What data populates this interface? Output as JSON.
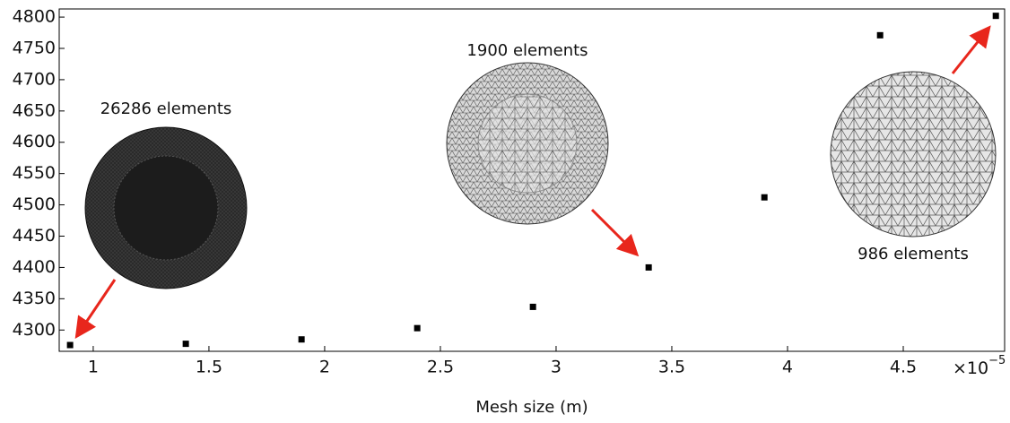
{
  "chart_data": {
    "type": "scatter",
    "x_label": "Mesh size (m)",
    "x_multiplier": {
      "base": "×10",
      "exponent": "−5"
    },
    "x": [
      0.9,
      1.4,
      1.9,
      2.4,
      2.9,
      3.4,
      3.9,
      4.4,
      4.9
    ],
    "values": [
      4276,
      4278,
      4285,
      4303,
      4337,
      4400,
      4512,
      4771,
      4802
    ],
    "color": "#000000",
    "xlim": [
      0.853,
      4.938
    ],
    "xticks": [
      1,
      1.5,
      2,
      2.5,
      3,
      3.5,
      4,
      4.5
    ],
    "ylim": [
      4266,
      4813
    ],
    "yticks": [
      4300,
      4350,
      4400,
      4450,
      4500,
      4550,
      4600,
      4650,
      4700,
      4750,
      4800
    ],
    "grid": false,
    "annotations": [
      "26286 elements",
      "1900 elements",
      "986 elements"
    ]
  }
}
